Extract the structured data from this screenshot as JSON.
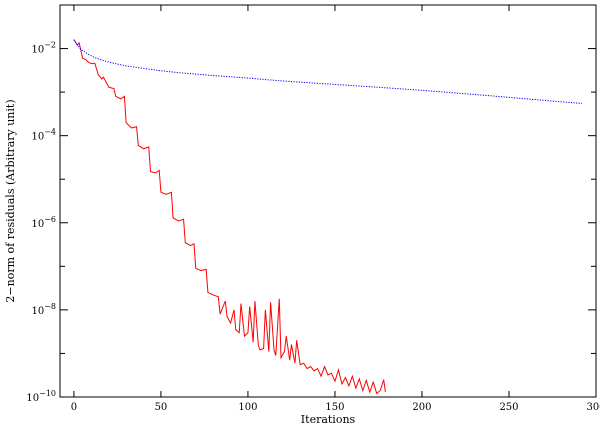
{
  "chart_data": {
    "type": "line",
    "title": "",
    "xlabel": "Iterations",
    "ylabel": "2−norm of residuals  (Arbitrary unit)",
    "xlim": [
      -8,
      300
    ],
    "ylim": [
      1e-10,
      0.1
    ],
    "yscale": "log",
    "grid": false,
    "legend": "none",
    "xticks": [
      0,
      50,
      100,
      150,
      200,
      250,
      300
    ],
    "xtick_labels": [
      "0",
      "50",
      "100",
      "150",
      "200",
      "250",
      "300"
    ],
    "yticks": [
      1e-10,
      1e-08,
      1e-06,
      0.0001,
      0.01
    ],
    "ytick_labels": [
      {
        "base": "10",
        "exp": "−10"
      },
      {
        "base": "10",
        "exp": "−8"
      },
      {
        "base": "10",
        "exp": "−6"
      },
      {
        "base": "10",
        "exp": "−4"
      },
      {
        "base": "10",
        "exp": "−2"
      }
    ],
    "series": [
      {
        "color": "#ff0000",
        "style": "solid",
        "x": [
          0,
          2,
          3,
          5,
          7,
          8,
          10,
          12,
          14,
          16,
          17,
          20,
          23,
          24,
          27,
          29,
          30,
          33,
          36,
          37,
          40,
          43,
          44,
          47,
          49,
          50,
          53,
          56,
          57,
          60,
          63,
          64,
          67,
          69,
          70,
          73,
          76,
          77,
          80,
          83,
          84,
          87,
          88,
          90,
          92,
          93,
          95,
          96,
          98,
          100,
          101,
          103,
          104,
          106,
          107,
          109,
          110,
          112,
          113,
          115,
          116,
          118,
          119,
          121,
          122,
          124,
          125,
          127,
          128,
          130,
          132,
          134,
          136,
          138,
          140,
          142,
          144,
          146,
          148,
          150,
          152,
          154,
          156,
          158,
          160,
          162,
          164,
          166,
          168,
          170,
          172,
          174,
          176,
          178,
          179
        ],
        "y": [
          0.016,
          0.012,
          0.0135,
          0.006,
          0.0055,
          0.005,
          0.0045,
          0.0046,
          0.0025,
          0.002,
          0.0022,
          0.0013,
          0.0012,
          0.0008,
          0.0007,
          0.0008,
          0.0002,
          0.00015,
          0.00016,
          6e-05,
          5e-05,
          5.5e-05,
          1.5e-05,
          1.4e-05,
          1.6e-05,
          5e-06,
          4.5e-06,
          5e-06,
          1.3e-06,
          1.1e-06,
          1.2e-06,
          3.5e-07,
          3e-07,
          3.3e-07,
          9e-08,
          8e-08,
          8.5e-08,
          2.5e-08,
          2.2e-08,
          2e-08,
          8e-09,
          1.6e-08,
          7e-09,
          5e-09,
          1e-08,
          3.5e-09,
          3e-09,
          1.4e-08,
          2.5e-09,
          3e-09,
          1.2e-08,
          1.8e-09,
          1.6e-08,
          1.5e-09,
          1.2e-09,
          1.3e-09,
          1e-08,
          1.1e-09,
          1.5e-08,
          1.2e-09,
          9e-10,
          1.8e-08,
          8e-10,
          1.1e-09,
          2.5e-09,
          7e-10,
          1.6e-09,
          6e-10,
          2e-09,
          5.5e-10,
          6e-10,
          4.5e-10,
          5e-10,
          4e-10,
          4.5e-10,
          3e-10,
          5e-10,
          3.2e-10,
          3.5e-10,
          2.3e-10,
          4.2e-10,
          2e-10,
          2.8e-10,
          1.8e-10,
          3e-10,
          1.6e-10,
          2.6e-10,
          1.4e-10,
          2.4e-10,
          1.3e-10,
          2.2e-10,
          1.2e-10,
          1.4e-10,
          2.5e-10,
          1.3e-10
        ]
      },
      {
        "color": "#0000ff",
        "style": "dotted",
        "x": [
          0,
          2,
          4,
          6,
          8,
          10,
          12,
          15,
          20,
          25,
          30,
          40,
          50,
          60,
          80,
          100,
          120,
          150,
          180,
          200,
          220,
          240,
          260,
          280,
          292
        ],
        "y": [
          0.016,
          0.012,
          0.0095,
          0.0085,
          0.0075,
          0.0068,
          0.0062,
          0.0056,
          0.0049,
          0.0044,
          0.004,
          0.0035,
          0.0031,
          0.0028,
          0.0024,
          0.0021,
          0.0018,
          0.0015,
          0.00125,
          0.0011,
          0.00095,
          0.00082,
          0.0007,
          0.0006,
          0.00055
        ]
      }
    ]
  }
}
